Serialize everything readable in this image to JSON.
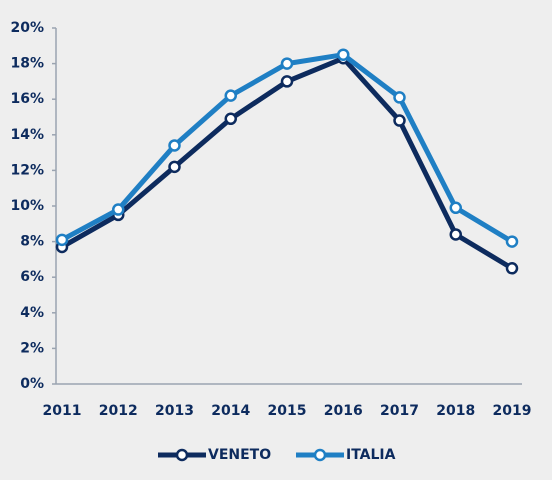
{
  "chart_data": {
    "type": "line",
    "categories": [
      "2011",
      "2012",
      "2013",
      "2014",
      "2015",
      "2016",
      "2017",
      "2018",
      "2019"
    ],
    "series": [
      {
        "name": "VENETO",
        "color": "#0d2b5e",
        "values": [
          7.7,
          9.5,
          12.2,
          14.9,
          17.0,
          18.3,
          14.8,
          8.4,
          6.5
        ]
      },
      {
        "name": "ITALIA",
        "color": "#1f7fc4",
        "values": [
          8.1,
          9.8,
          13.4,
          16.2,
          18.0,
          18.5,
          16.1,
          9.9,
          8.0
        ]
      }
    ],
    "ylim": [
      0,
      20
    ],
    "yticks": [
      {
        "value": 0,
        "label": "0%"
      },
      {
        "value": 2,
        "label": "2%"
      },
      {
        "value": 4,
        "label": "4%"
      },
      {
        "value": 6,
        "label": "6%"
      },
      {
        "value": 8,
        "label": "8%"
      },
      {
        "value": 10,
        "label": "10%"
      },
      {
        "value": 12,
        "label": "12%"
      },
      {
        "value": 14,
        "label": "14%"
      },
      {
        "value": 16,
        "label": "16%"
      },
      {
        "value": 18,
        "label": "18%"
      },
      {
        "value": 20,
        "label": "20%"
      }
    ],
    "grid": false,
    "legend": "bottom"
  }
}
